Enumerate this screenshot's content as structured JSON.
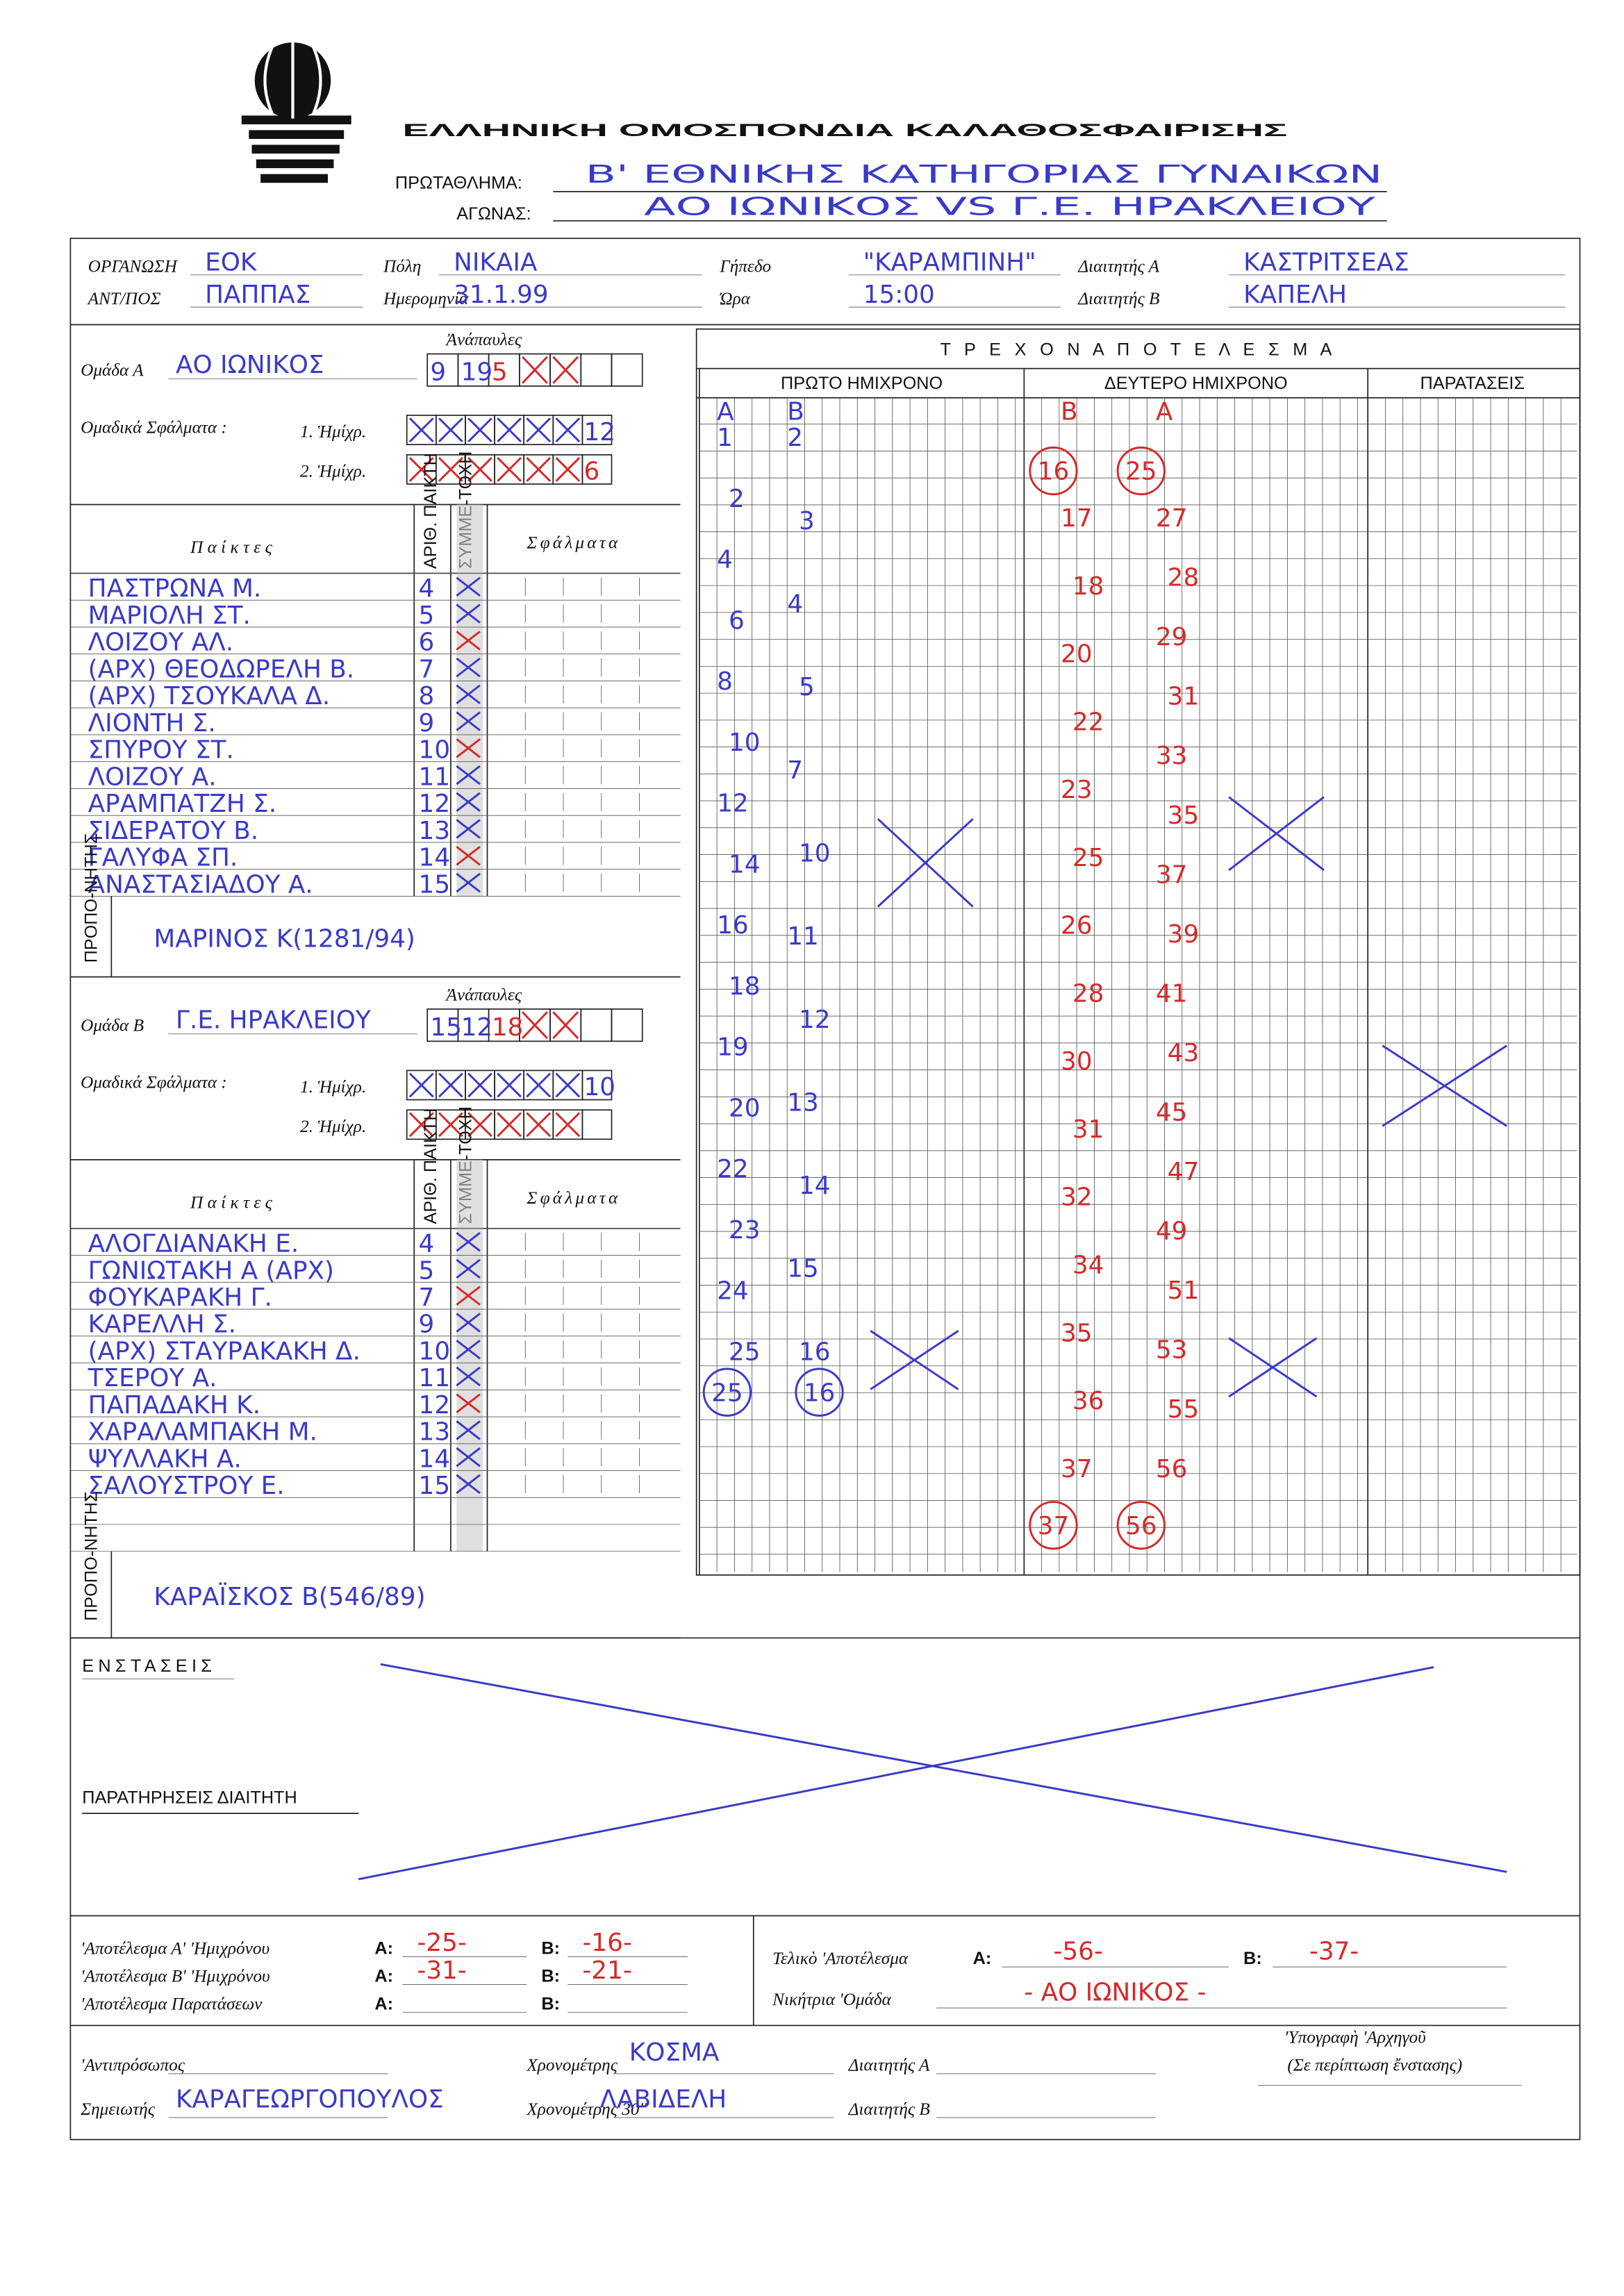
{
  "header": {
    "federation": "ΕΛΛΗΝΙΚΗ ΟΜΟΣΠΟΝΔΙΑ ΚΑΛΑΘΟΣΦΑΙΡΙΣΗΣ",
    "championship_label": "ΠΡΩΤΑΘΛΗΜΑ:",
    "championship": "Β' ΕΘΝΙΚΗΣ ΚΑΤΗΓΟΡΙΑΣ ΓΥΝΑΙΚΩΝ",
    "game_label": "ΑΓΩΝΑΣ:",
    "game": "ΑΟ ΙΩΝΙΚΟΣ VS Γ.Ε. ΗΡΑΚΛΕΙΟΥ"
  },
  "info": [
    {
      "label": "ΟΡΓΑΝΩΣΗ",
      "value": "ΕΟΚ"
    },
    {
      "label": "Πόλη",
      "value": "ΝΙΚΑΙΑ"
    },
    {
      "label": "Γήπεδο",
      "value": "\"ΚΑΡΑΜΠΙΝΗ\""
    },
    {
      "label": "Διαιτητής Α",
      "value": "ΚΑΣΤΡΙΤΣΕΑΣ"
    },
    {
      "label": "ΑΝΤ/ΠΟΣ",
      "value": "ΠΑΠΠΑΣ"
    },
    {
      "label": "Ημερομηνία",
      "value": "31.1.99"
    },
    {
      "label": "Ώρα",
      "value": "15:00"
    },
    {
      "label": "Διαιτητής Β",
      "value": "ΚΑΠΕΛΗ"
    }
  ],
  "teams": [
    {
      "label": "Ομάδα Α",
      "name": "ΑΟ ΙΩΝΙΚΟΣ",
      "timeouts_label": "Ἀνάπαυλες",
      "timeouts": [
        "9",
        "19",
        "5"
      ],
      "team_fouls_label": "Ομαδικά Σφάλματα :",
      "halves": [
        "1. Ἡμίχρ.",
        "2. Ἡμίχρ."
      ],
      "team_fouls": [
        "12",
        "6"
      ],
      "columns": {
        "players": "Παίκτες",
        "number": "ΑΡΙΘ. ΠΑΙΚΤΗ",
        "participation": "ΣΥΜΜΕ-ΤΟΧΗ",
        "fouls": "Σφάλματα"
      },
      "players": [
        {
          "name": "ΠΑΣΤΡΩΝΑ Μ.",
          "number": "4"
        },
        {
          "name": "ΜΑΡΙΟΛΗ ΣΤ.",
          "number": "5"
        },
        {
          "name": "ΛΟΙΖΟΥ ΑΛ.",
          "number": "6"
        },
        {
          "name": "(ΑΡΧ) ΘΕΟΔΩΡΕΛΗ Β.",
          "number": "7"
        },
        {
          "name": "(ΑΡΧ) ΤΣΟΥΚΑΛΑ Δ.",
          "number": "8"
        },
        {
          "name": "ΛΙΟΝΤΗ Σ.",
          "number": "9"
        },
        {
          "name": "ΣΠΥΡΟΥ ΣΤ.",
          "number": "10"
        },
        {
          "name": "ΛΟΙΖΟΥ Α.",
          "number": "11"
        },
        {
          "name": "ΑΡΑΜΠΑΤΖΗ Σ.",
          "number": "12"
        },
        {
          "name": "ΣΙΔΕΡΑΤΟΥ Β.",
          "number": "13"
        },
        {
          "name": "ΓΑΛΥΦΑ ΣΠ.",
          "number": "14"
        },
        {
          "name": "ΑΝΑΣΤΑΣΙΑΔΟΥ Α.",
          "number": "15"
        }
      ],
      "coach_label": "ΠΡΟΠΟ-ΝΗΤΗΣ",
      "coach": "ΜΑΡΙΝΟΣ Κ(1281/94)"
    },
    {
      "label": "Ομάδα Β",
      "name": "Γ.Ε. ΗΡΑΚΛΕΙΟΥ",
      "timeouts_label": "Ἀνάπαυλες",
      "timeouts": [
        "15",
        "12",
        "18"
      ],
      "team_fouls_label": "Ομαδικά Σφάλματα :",
      "halves": [
        "1. Ἡμίχρ.",
        "2. Ἡμίχρ."
      ],
      "team_fouls": [
        "10"
      ],
      "columns": {
        "players": "Παίκτες",
        "number": "ΑΡΙΘ. ΠΑΙΚΤΗ",
        "participation": "ΣΥΜΜΕ-ΤΟΧΗ",
        "fouls": "Σφάλματα"
      },
      "players": [
        {
          "name": "ΑΛΟΓΔΙΑΝΑΚΗ Ε.",
          "number": "4"
        },
        {
          "name": "ΓΩΝΙΩΤΑΚΗ Α (ΑΡΧ)",
          "number": "5"
        },
        {
          "name": "ΦΟΥΚΑΡΑΚΗ Γ.",
          "number": "7"
        },
        {
          "name": "ΚΑΡΕΛΛΗ Σ.",
          "number": "9"
        },
        {
          "name": "(ΑΡΧ) ΣΤΑΥΡΑΚΑΚΗ Δ.",
          "number": "10"
        },
        {
          "name": "ΤΣΕΡΟΥ Α.",
          "number": "11"
        },
        {
          "name": "ΠΑΠΑΔΑΚΗ Κ.",
          "number": "12"
        },
        {
          "name": "ΧΑΡΑΛΑΜΠΑΚΗ Μ.",
          "number": "13"
        },
        {
          "name": "ΨΥΛΛΑΚΗ Α.",
          "number": "14"
        },
        {
          "name": "ΣΑΛΟΥΣΤΡΟΥ Ε.",
          "number": "15"
        }
      ],
      "coach_label": "ΠΡΟΠΟ-ΝΗΤΗΣ",
      "coach": "ΚΑΡΑΪΣΚΟΣ Β(546/89)"
    }
  ],
  "running_score": {
    "title": "Τ Ρ Ε Χ Ο Ν   Α Π Ο Τ Ε Λ Ε Σ Μ Α",
    "team_letters": [
      "A",
      "B"
    ],
    "periods": [
      {
        "label": "ΠΡΩΤΟ ΗΜΙΧΡΟΝΟ",
        "A": [
          1,
          2,
          4,
          6,
          8,
          10,
          12,
          14,
          16,
          18,
          19,
          20,
          22,
          23,
          24,
          25
        ],
        "B": [
          2,
          3,
          4,
          5,
          7,
          10,
          11,
          12,
          13,
          14,
          15,
          16
        ],
        "total_A": 25,
        "total_B": 16
      },
      {
        "label": "ΔΕΥΤΕΡΟ ΗΜΙΧΡΟΝΟ",
        "B": [
          17,
          18,
          20,
          22,
          23,
          25,
          26,
          28,
          30,
          31,
          32,
          34,
          35,
          36,
          37
        ],
        "A": [
          27,
          28,
          29,
          31,
          33,
          35,
          37,
          39,
          41,
          43,
          45,
          47,
          49,
          51,
          53,
          55,
          56
        ],
        "total_A": 56,
        "total_B": 37
      },
      {
        "label": "ΠΑΡΑΤΑΣΕΙΣ"
      }
    ]
  },
  "protests": "ΕΝΣΤΑΣΕΙΣ",
  "remarks": "ΠΑΡΑΤΗΡΗΣΕΙΣ ΔΙΑΙΤΗΤΗ",
  "results": {
    "a_label": "A:",
    "b_label": "B:",
    "rows": [
      {
        "label": "'Αποτέλεσμα Α' 'Ημιχρόνου",
        "A": "-25-",
        "B": "-16-"
      },
      {
        "label": "'Αποτέλεσμα Β' 'Ημιχρόνου",
        "A": "-31-",
        "B": "-21-"
      },
      {
        "label": "'Αποτέλεσμα Παρατάσεων"
      }
    ],
    "final_label": "Τελικὸ 'Αποτέλεσμα",
    "final_A": "-56-",
    "final_B": "-37-",
    "winner_label": "Νικήτρια 'Ομάδα",
    "winner": "- ΑΟ ΙΩΝΙΚΟΣ -",
    "captain": "'Υπογραφὴ 'Αρχηγοῦ",
    "captain_note": "(Σε περίπτωση ἔνστασης)"
  },
  "officials": [
    {
      "label": "'Αντιπρόσωπος"
    },
    {
      "label": "Σημειωτής",
      "name": "ΚΑΡΑΓΕΩΡΓΟΠΟΥΛΟΣ"
    },
    {
      "label": "Χρονομέτρης",
      "name": "ΚΟΣΜΑ"
    },
    {
      "label": "Χρονομέτρης 30''",
      "name": "ΛΑΒΙΔΕΛΗ"
    },
    {
      "label": "Διαιτητής Α"
    },
    {
      "label": "Διαιτητής Β"
    }
  ]
}
